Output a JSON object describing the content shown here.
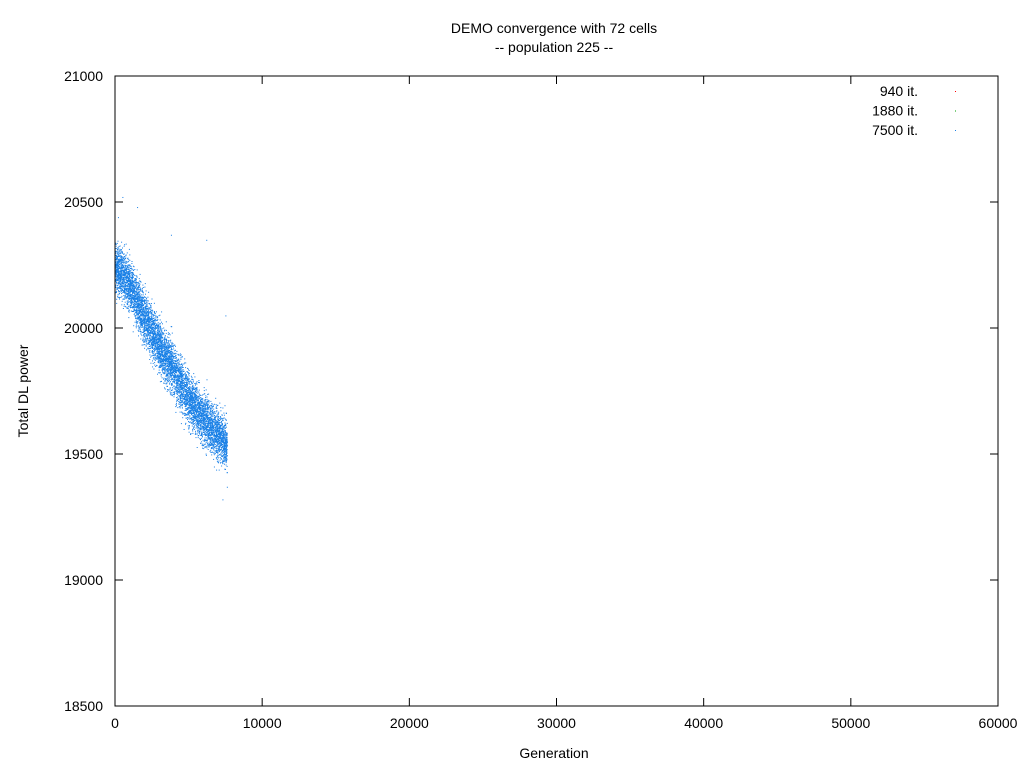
{
  "chart_data": {
    "type": "scatter",
    "title": "DEMO convergence with 72 cells",
    "subtitle": "-- population 225 --",
    "xlabel": "Generation",
    "ylabel": "Total DL power",
    "xlim": [
      0,
      60000
    ],
    "ylim": [
      18500,
      21000
    ],
    "xticks": [
      "0",
      "10000",
      "20000",
      "30000",
      "40000",
      "50000",
      "60000"
    ],
    "yticks": [
      "18500",
      "19000",
      "19500",
      "20000",
      "20500",
      "21000"
    ],
    "grid": false,
    "legend_position": "top-right",
    "series": [
      {
        "name": "940 it.",
        "color": "#ff0000",
        "points": []
      },
      {
        "name": "1880 it.",
        "color": "#00a000",
        "points": []
      },
      {
        "name": "7500 it.",
        "color": "#1a80e6",
        "trend": [
          [
            0,
            20250
          ],
          [
            1000,
            20170
          ],
          [
            2000,
            20040
          ],
          [
            3000,
            19930
          ],
          [
            4000,
            19830
          ],
          [
            5000,
            19720
          ],
          [
            6000,
            19640
          ],
          [
            7000,
            19580
          ],
          [
            7600,
            19540
          ]
        ],
        "spread": 70,
        "points": [
          [
            0,
            20260
          ],
          [
            200,
            20440
          ],
          [
            500,
            20520
          ],
          [
            800,
            20300
          ],
          [
            1000,
            20180
          ],
          [
            1500,
            20100
          ],
          [
            2000,
            20030
          ],
          [
            2500,
            19980
          ],
          [
            3000,
            19920
          ],
          [
            3500,
            19880
          ],
          [
            4000,
            19830
          ],
          [
            4500,
            19760
          ],
          [
            5000,
            19720
          ],
          [
            5500,
            19690
          ],
          [
            6000,
            19640
          ],
          [
            6500,
            19610
          ],
          [
            7000,
            19580
          ],
          [
            7500,
            19490
          ],
          [
            7600,
            19370
          ],
          [
            7300,
            19320
          ],
          [
            6200,
            20350
          ],
          [
            3800,
            20370
          ],
          [
            1500,
            20480
          ],
          [
            7500,
            20050
          ]
        ]
      }
    ]
  }
}
